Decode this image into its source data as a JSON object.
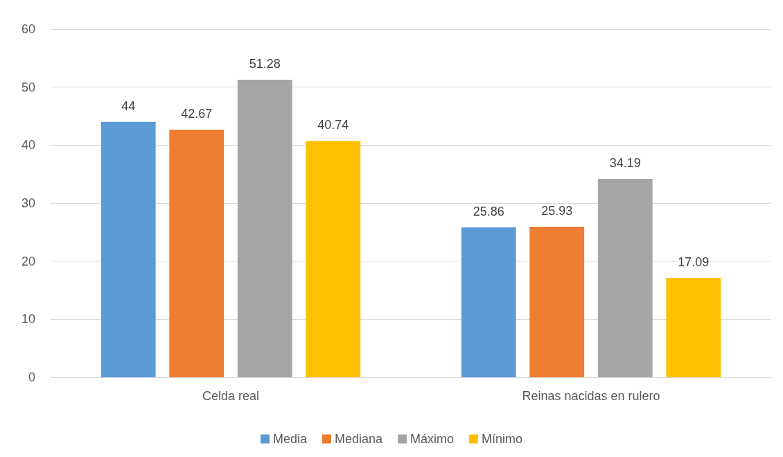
{
  "chart_data": {
    "type": "bar",
    "categories": [
      "Celda real",
      "Reinas nacidas en rulero"
    ],
    "series": [
      {
        "name": "Media",
        "color": "#5b9bd5",
        "values": [
          44,
          25.86
        ]
      },
      {
        "name": "Mediana",
        "color": "#ed7d31",
        "values": [
          42.67,
          25.93
        ]
      },
      {
        "name": "Máximo",
        "color": "#a5a5a5",
        "values": [
          51.28,
          34.19
        ]
      },
      {
        "name": "Mínimo",
        "color": "#ffc000",
        "values": [
          40.74,
          17.09
        ]
      }
    ],
    "ylim": [
      0,
      60
    ],
    "yticks": [
      0,
      10,
      20,
      30,
      40,
      50,
      60
    ],
    "grid": "y",
    "legend": "bottom",
    "data_labels": true
  }
}
